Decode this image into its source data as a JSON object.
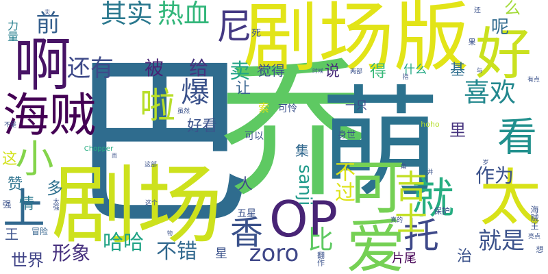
{
  "word_cloud": {
    "background": "#ffffff",
    "words": [
      {
        "text": "巴",
        "color": "#2f6c8e"
      },
      {
        "text": "乔",
        "color": "#5ec962"
      },
      {
        "text": "萌",
        "color": "#2c728e"
      },
      {
        "text": "剧场版",
        "color": "#e2e418"
      },
      {
        "text": "剧场",
        "color": "#cde11d"
      },
      {
        "text": "海贼",
        "color": "#440154"
      },
      {
        "text": "啊",
        "color": "#471365"
      },
      {
        "text": "好",
        "color": "#cae11f"
      },
      {
        "text": "太",
        "color": "#d8e219"
      },
      {
        "text": "看",
        "color": "#21908d"
      },
      {
        "text": "就",
        "color": "#26ad81"
      },
      {
        "text": "可爱",
        "color": "#75d054"
      },
      {
        "text": "OP",
        "color": "#482475"
      },
      {
        "text": "上",
        "color": "#31688e"
      },
      {
        "text": "小",
        "color": "#84d44b"
      },
      {
        "text": "香",
        "color": "#3b528b"
      },
      {
        "text": "啦",
        "color": "#b8de29"
      },
      {
        "text": "托",
        "color": "#3e4989"
      },
      {
        "text": "爆",
        "color": "#3b528b"
      },
      {
        "text": "喜欢",
        "color": "#23888e"
      },
      {
        "text": "其实",
        "color": "#2a788e"
      },
      {
        "text": "热血",
        "color": "#32b67a"
      },
      {
        "text": "尼",
        "color": "#443983"
      },
      {
        "text": "前",
        "color": "#355f8d"
      },
      {
        "text": "还有",
        "color": "#3e4a89"
      },
      {
        "text": "被",
        "color": "#482475"
      },
      {
        "text": "给",
        "color": "#46337e"
      },
      {
        "text": "卖",
        "color": "#20a386"
      },
      {
        "text": "呢",
        "color": "#306a8e"
      },
      {
        "text": "吉士",
        "color": "#c2df23"
      },
      {
        "text": "比",
        "color": "#5ec962"
      },
      {
        "text": "就是",
        "color": "#3b528b"
      },
      {
        "text": "作为",
        "color": "#3b528b"
      },
      {
        "text": "不过",
        "color": "#dde318"
      },
      {
        "text": "sanji",
        "color": "#1f9a8a"
      },
      {
        "text": "zoro",
        "color": "#3f4788"
      },
      {
        "text": "哈哈",
        "color": "#20a386"
      },
      {
        "text": "不错",
        "color": "#31688e"
      },
      {
        "text": "形象",
        "color": "#46307e"
      },
      {
        "text": "世界",
        "color": "#414487"
      },
      {
        "text": "好看",
        "color": "#3b528b"
      },
      {
        "text": "得",
        "color": "#37b878"
      },
      {
        "text": "让",
        "color": "#34618d"
      },
      {
        "text": "说",
        "color": "#472c7a"
      },
      {
        "text": "觉得",
        "color": "#3b528b"
      },
      {
        "text": "么",
        "color": "#a2da37"
      },
      {
        "text": "什么",
        "color": "#22a884"
      },
      {
        "text": "基",
        "color": "#2e6e8e"
      },
      {
        "text": "一只",
        "color": "#3e4989"
      },
      {
        "text": "里",
        "color": "#46337e"
      },
      {
        "text": "集",
        "color": "#31688e"
      },
      {
        "text": "人",
        "color": "#3e4989"
      },
      {
        "text": "多",
        "color": "#2d708e"
      },
      {
        "text": "情",
        "color": "#2a788e"
      },
      {
        "text": "赞",
        "color": "#2c728e"
      },
      {
        "text": "这",
        "color": "#d2e21b"
      },
      {
        "text": "王",
        "color": "#3b528b"
      },
      {
        "text": "冒险",
        "color": "#33638d"
      },
      {
        "text": "五星",
        "color": "#3b528b"
      },
      {
        "text": "星",
        "color": "#3b528b"
      },
      {
        "text": "片尾",
        "color": "#440154"
      },
      {
        "text": "治",
        "color": "#3b528b"
      },
      {
        "text": "身世",
        "color": "#3b528b"
      },
      {
        "text": "可以",
        "color": "#3b528b"
      },
      {
        "text": "可怜",
        "color": "#3b528b"
      },
      {
        "text": "索",
        "color": "#dde318"
      },
      {
        "text": "保护",
        "color": "#3b528b"
      },
      {
        "text": "海贼王",
        "color": "#3b528b"
      },
      {
        "text": "力量",
        "color": "#277f8e"
      },
      {
        "text": "死",
        "color": "#3b528b"
      },
      {
        "text": "不",
        "color": "#3b528b"
      },
      {
        "text": "Chopper",
        "color": "#26ad81"
      },
      {
        "text": "hoho",
        "color": "#b5de2b"
      },
      {
        "text": "虽然",
        "color": "#3b528b"
      },
      {
        "text": "不是",
        "color": "#3b528b"
      },
      {
        "text": "这部",
        "color": "#3b528b"
      },
      {
        "text": "这个",
        "color": "#3b528b"
      },
      {
        "text": "有点",
        "color": "#3b528b"
      },
      {
        "text": "两部",
        "color": "#3b528b"
      },
      {
        "text": "还",
        "color": "#3b528b"
      },
      {
        "text": "夫",
        "color": "#3b528b"
      },
      {
        "text": "与",
        "color": "#3b528b"
      },
      {
        "text": "果",
        "color": "#3b528b"
      },
      {
        "text": "角",
        "color": "#3b528b"
      },
      {
        "text": "并",
        "color": "#3b528b"
      },
      {
        "text": "岁",
        "color": "#3b528b"
      },
      {
        "text": "而",
        "color": "#3b528b"
      },
      {
        "text": "物",
        "color": "#3b528b"
      },
      {
        "text": "真的",
        "color": "#3b528b"
      },
      {
        "text": "亮点",
        "color": "#3b528b"
      },
      {
        "text": "想",
        "color": "#3b528b"
      },
      {
        "text": "翻作",
        "color": "#3b528b"
      },
      {
        "text": "强",
        "color": "#3b528b"
      },
      {
        "text": "太强",
        "color": "#3b528b"
      },
      {
        "text": "时候",
        "color": "#3b528b"
      },
      {
        "text": "指",
        "color": "#3b528b"
      }
    ]
  }
}
